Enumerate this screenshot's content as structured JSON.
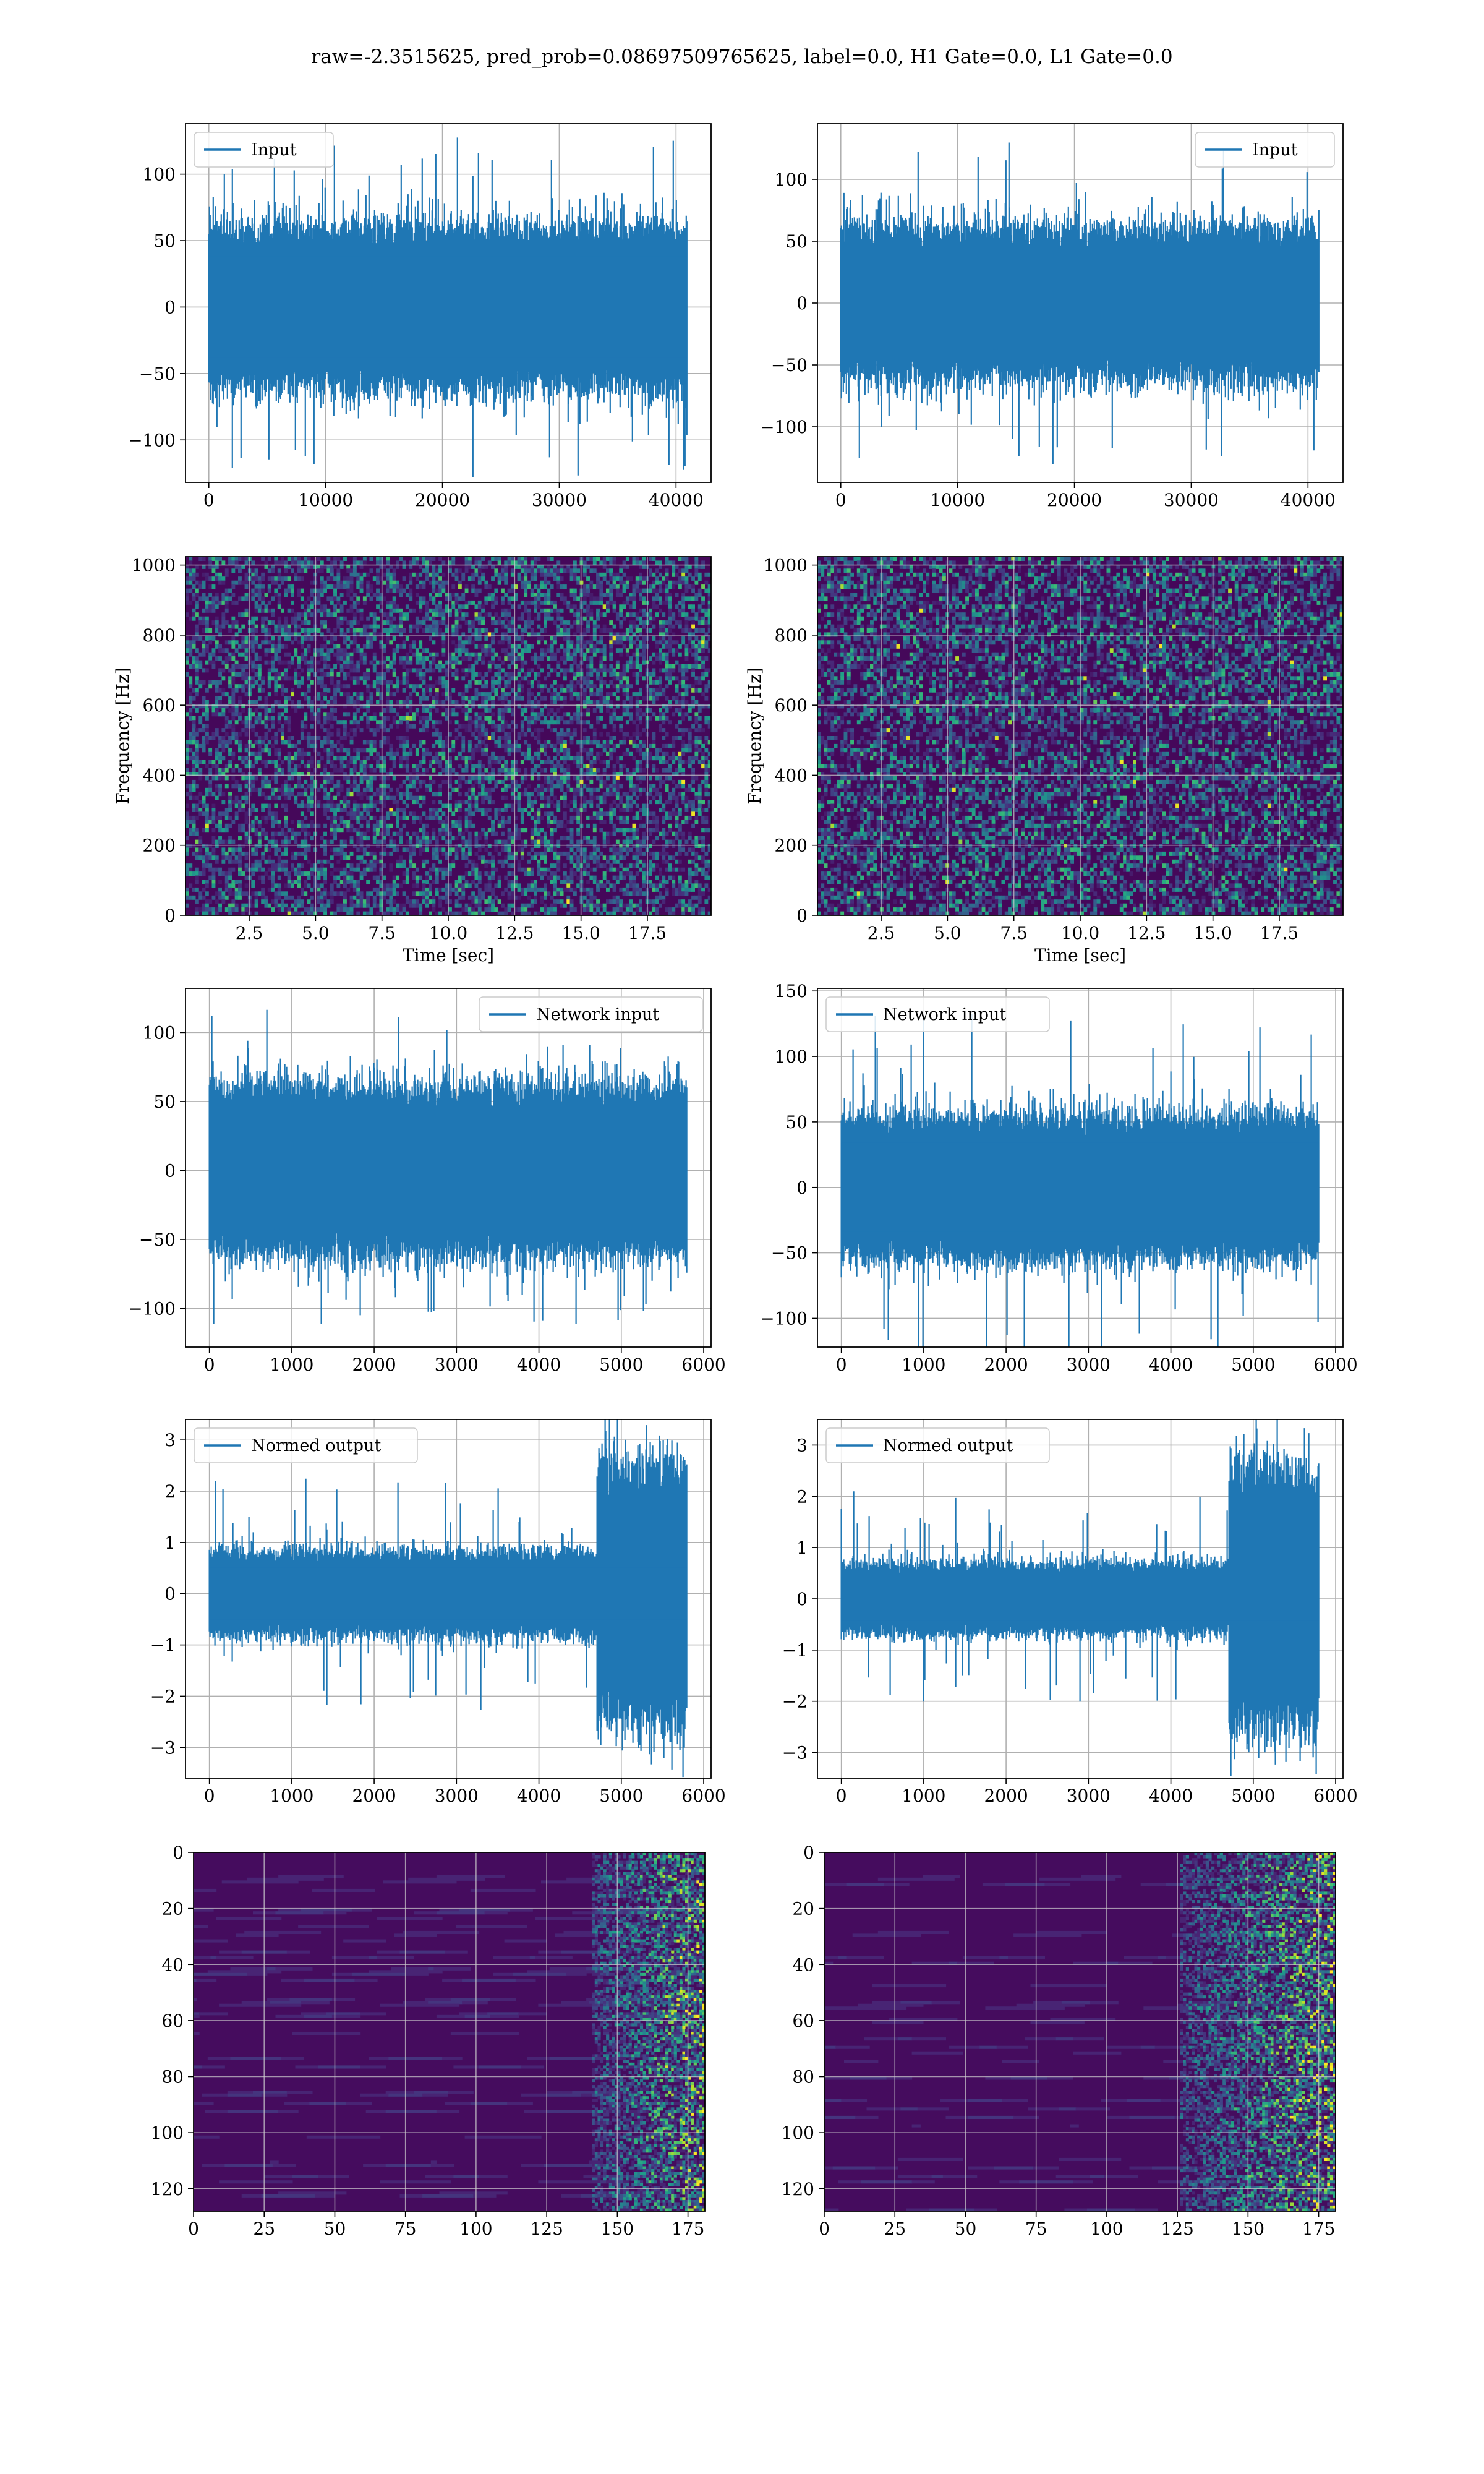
{
  "figure": {
    "title": "raw=-2.3515625, pred_prob=0.08697509765625, label=0.0, H1 Gate=0.0, L1 Gate=0.0"
  },
  "chart_data": [
    {
      "id": "input-left",
      "type": "line",
      "series_color": "#1f77b4",
      "legend": {
        "label": "Input",
        "placement": "upper-left"
      },
      "xlim": [
        -2000,
        43000
      ],
      "ylim": [
        -132,
        138
      ],
      "xticks": [
        0,
        10000,
        20000,
        30000,
        40000
      ],
      "yticks": [
        -100,
        -50,
        0,
        50,
        100
      ],
      "grid": true,
      "n": 40960,
      "amp_core": 45,
      "amp_peak": 130,
      "band_left_peak": 70,
      "xlabel": "",
      "ylabel": ""
    },
    {
      "id": "input-right",
      "type": "line",
      "series_color": "#1f77b4",
      "legend": {
        "label": "Input",
        "placement": "upper-right"
      },
      "xlim": [
        -2000,
        43000
      ],
      "ylim": [
        -145,
        145
      ],
      "xticks": [
        0,
        10000,
        20000,
        30000,
        40000
      ],
      "yticks": [
        -100,
        -50,
        0,
        50,
        100
      ],
      "grid": true,
      "n": 40960,
      "amp_core": 45,
      "amp_peak": 130,
      "xlabel": "",
      "ylabel": ""
    },
    {
      "id": "spec-left",
      "type": "heatmap",
      "colormap": "viridis",
      "xlim": [
        0.1,
        19.9
      ],
      "ylim": [
        0,
        1024
      ],
      "xticks": [
        2.5,
        5.0,
        7.5,
        10.0,
        12.5,
        15.0,
        17.5
      ],
      "xtick_labels": [
        "2.5",
        "5.0",
        "7.5",
        "10.0",
        "12.5",
        "15.0",
        "17.5"
      ],
      "yticks": [
        0,
        200,
        400,
        600,
        800,
        1000
      ],
      "xlabel": "Time [sec]",
      "ylabel": "Frequency [Hz]",
      "grid": true
    },
    {
      "id": "spec-right",
      "type": "heatmap",
      "colormap": "viridis",
      "xlim": [
        0.1,
        19.9
      ],
      "ylim": [
        0,
        1024
      ],
      "xticks": [
        2.5,
        5.0,
        7.5,
        10.0,
        12.5,
        15.0,
        17.5
      ],
      "xtick_labels": [
        "2.5",
        "5.0",
        "7.5",
        "10.0",
        "12.5",
        "15.0",
        "17.5"
      ],
      "yticks": [
        0,
        200,
        400,
        600,
        800,
        1000
      ],
      "xlabel": "Time [sec]",
      "ylabel": "Frequency [Hz]",
      "grid": true
    },
    {
      "id": "net-left",
      "type": "line",
      "series_color": "#1f77b4",
      "legend": {
        "label": "Network input",
        "placement": "upper-right"
      },
      "xlim": [
        -290,
        6090
      ],
      "ylim": [
        -128,
        132
      ],
      "xticks": [
        0,
        1000,
        2000,
        3000,
        4000,
        5000,
        6000
      ],
      "yticks": [
        -100,
        -50,
        0,
        50,
        100
      ],
      "grid": true,
      "n": 5800,
      "amp_core": 45,
      "amp_peak": 120,
      "xlabel": "",
      "ylabel": ""
    },
    {
      "id": "net-right",
      "type": "line",
      "series_color": "#1f77b4",
      "legend": {
        "label": "Network input",
        "placement": "upper-left"
      },
      "xlim": [
        -290,
        6090
      ],
      "ylim": [
        -122,
        152
      ],
      "xticks": [
        0,
        1000,
        2000,
        3000,
        4000,
        5000,
        6000
      ],
      "yticks": [
        -100,
        -50,
        0,
        50,
        100,
        150
      ],
      "grid": true,
      "n": 5800,
      "amp_core": 40,
      "amp_peak": 138,
      "xlabel": "",
      "ylabel": ""
    },
    {
      "id": "norm-left",
      "type": "line",
      "series_color": "#1f77b4",
      "legend": {
        "label": "Normed output",
        "placement": "upper-left"
      },
      "xlim": [
        -290,
        6090
      ],
      "ylim": [
        -3.6,
        3.4
      ],
      "xticks": [
        0,
        1000,
        2000,
        3000,
        4000,
        5000,
        6000
      ],
      "yticks": [
        -3,
        -2,
        -1,
        0,
        1,
        2,
        3
      ],
      "grid": true,
      "n": 5800,
      "amp_core": 0.6,
      "amp_peak": 2.3,
      "burst_start": 4700,
      "burst_amp": 1.9,
      "burst_peak": 3.2,
      "xlabel": "",
      "ylabel": ""
    },
    {
      "id": "norm-right",
      "type": "line",
      "series_color": "#1f77b4",
      "legend": {
        "label": "Normed output",
        "placement": "upper-left"
      },
      "xlim": [
        -290,
        6090
      ],
      "ylim": [
        -3.5,
        3.5
      ],
      "xticks": [
        0,
        1000,
        2000,
        3000,
        4000,
        5000,
        6000
      ],
      "yticks": [
        -3,
        -2,
        -1,
        0,
        1,
        2,
        3
      ],
      "grid": true,
      "n": 5800,
      "amp_core": 0.5,
      "amp_peak": 2.1,
      "burst_start": 4700,
      "burst_amp": 1.9,
      "burst_peak": 3.3,
      "xlabel": "",
      "ylabel": ""
    },
    {
      "id": "feat-left",
      "type": "heatmap",
      "colormap": "viridis",
      "xlim": [
        0,
        181
      ],
      "ylim": [
        128,
        0
      ],
      "xticks": [
        0,
        25,
        50,
        75,
        100,
        125,
        150,
        175
      ],
      "yticks": [
        0,
        20,
        40,
        60,
        80,
        100,
        120
      ],
      "rows": 128,
      "cols": 181,
      "active_from": 140,
      "grid": true,
      "xlabel": "",
      "ylabel": ""
    },
    {
      "id": "feat-right",
      "type": "heatmap",
      "colormap": "viridis",
      "xlim": [
        0,
        181
      ],
      "ylim": [
        128,
        0
      ],
      "xticks": [
        0,
        25,
        50,
        75,
        100,
        125,
        150,
        175
      ],
      "yticks": [
        0,
        20,
        40,
        60,
        80,
        100,
        120
      ],
      "rows": 128,
      "cols": 181,
      "active_from": 125,
      "grid": true,
      "xlabel": "",
      "ylabel": ""
    }
  ]
}
